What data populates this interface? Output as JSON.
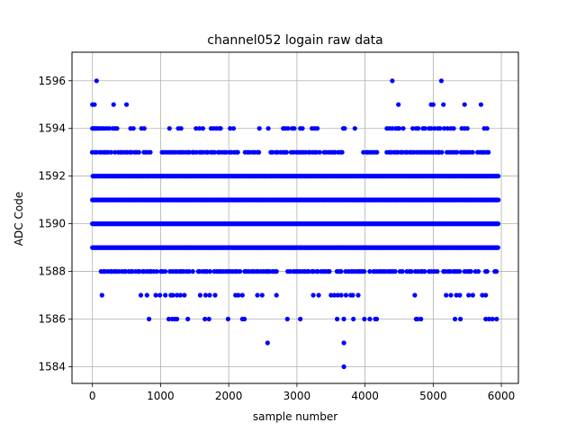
{
  "chart_data": {
    "type": "scatter",
    "title": "channel052 logain raw data",
    "xlabel": "sample number",
    "ylabel": "ADC Code",
    "xlim": [
      -300,
      6250
    ],
    "ylim": [
      1583.3,
      1597.2
    ],
    "xticks": [
      0,
      1000,
      2000,
      3000,
      4000,
      5000,
      6000
    ],
    "yticks": [
      1584,
      1586,
      1588,
      1590,
      1592,
      1594,
      1596
    ],
    "grid": true,
    "marker_color": "#0000ff",
    "series": [
      {
        "type": "dense_rows",
        "rows": [
          {
            "y": 1589,
            "x_range": [
              0,
              5950
            ]
          },
          {
            "y": 1590,
            "x_range": [
              0,
              5950
            ]
          },
          {
            "y": 1591,
            "x_range": [
              0,
              5950
            ]
          },
          {
            "y": 1592,
            "x_range": [
              0,
              5950
            ]
          }
        ]
      },
      {
        "type": "gapped_rows",
        "rows": [
          {
            "y": 1588,
            "x_range": [
              120,
              5950
            ],
            "gaps": [
              [
                2750,
                2850
              ],
              [
                3500,
                3580
              ],
              [
                4000,
                4040
              ]
            ]
          },
          {
            "y": 1593,
            "x_range": [
              0,
              5840
            ],
            "gaps": [
              [
                880,
                1000
              ],
              [
                2450,
                2600
              ],
              [
                3700,
                3960
              ],
              [
                4200,
                4280
              ]
            ]
          }
        ]
      },
      {
        "type": "points",
        "x": [
          0,
          20,
          40,
          60,
          80,
          110,
          140,
          170,
          210,
          250,
          300,
          330,
          360,
          560,
          600,
          720,
          760,
          1130,
          1260,
          1300,
          1520,
          1570,
          1620,
          1740,
          1780,
          1820,
          1860,
          1880,
          2020,
          2070,
          2450,
          2580,
          2800,
          2830,
          2870,
          2930,
          2960,
          3050,
          3080,
          3220,
          3260,
          3300,
          3680,
          3700,
          3850,
          4320,
          4360,
          4400,
          4450,
          4480,
          4500,
          4560,
          4700,
          4750,
          4780,
          4850,
          4880,
          4940,
          4970,
          5020,
          5070,
          5100,
          5160,
          5210,
          5260,
          5300,
          5420,
          5460,
          5500,
          5750,
          5790,
          0,
          30,
          310,
          500,
          4490,
          4970,
          5000,
          5150,
          5460,
          5700,
          60,
          4400,
          5120,
          140,
          710,
          800,
          930,
          990,
          1070,
          1150,
          1180,
          1240,
          1290,
          1350,
          1580,
          1660,
          1720,
          1800,
          2100,
          2140,
          2200,
          2420,
          2490,
          2700,
          3240,
          3320,
          3500,
          3550,
          3600,
          3650,
          3720,
          3790,
          3820,
          3900,
          4730,
          5190,
          5260,
          5340,
          5390,
          5520,
          5580,
          5720,
          5770,
          830,
          1120,
          1170,
          1210,
          1240,
          1400,
          1650,
          1710,
          1990,
          2200,
          2230,
          2860,
          3050,
          3590,
          3690,
          3830,
          3990,
          4070,
          4150,
          4170,
          4750,
          4770,
          4820,
          5320,
          5400,
          5770,
          5820,
          5870,
          5930,
          2570,
          3690,
          3690
        ],
        "y": [
          1594,
          1594,
          1594,
          1594,
          1594,
          1594,
          1594,
          1594,
          1594,
          1594,
          1594,
          1594,
          1594,
          1594,
          1594,
          1594,
          1594,
          1594,
          1594,
          1594,
          1594,
          1594,
          1594,
          1594,
          1594,
          1594,
          1594,
          1594,
          1594,
          1594,
          1594,
          1594,
          1594,
          1594,
          1594,
          1594,
          1594,
          1594,
          1594,
          1594,
          1594,
          1594,
          1594,
          1594,
          1594,
          1594,
          1594,
          1594,
          1594,
          1594,
          1594,
          1594,
          1594,
          1594,
          1594,
          1594,
          1594,
          1594,
          1594,
          1594,
          1594,
          1594,
          1594,
          1594,
          1594,
          1594,
          1594,
          1594,
          1594,
          1594,
          1594,
          1595,
          1595,
          1595,
          1595,
          1595,
          1595,
          1595,
          1595,
          1595,
          1595,
          1596,
          1596,
          1596,
          1587,
          1587,
          1587,
          1587,
          1587,
          1587,
          1587,
          1587,
          1587,
          1587,
          1587,
          1587,
          1587,
          1587,
          1587,
          1587,
          1587,
          1587,
          1587,
          1587,
          1587,
          1587,
          1587,
          1587,
          1587,
          1587,
          1587,
          1587,
          1587,
          1587,
          1587,
          1587,
          1587,
          1587,
          1587,
          1587,
          1587,
          1587,
          1587,
          1587,
          1586,
          1586,
          1586,
          1586,
          1586,
          1586,
          1586,
          1586,
          1586,
          1586,
          1586,
          1586,
          1586,
          1586,
          1586,
          1586,
          1586,
          1586,
          1586,
          1586,
          1586,
          1586,
          1586,
          1586,
          1586,
          1586,
          1586,
          1586,
          1586,
          1585,
          1585,
          1584
        ]
      }
    ]
  }
}
